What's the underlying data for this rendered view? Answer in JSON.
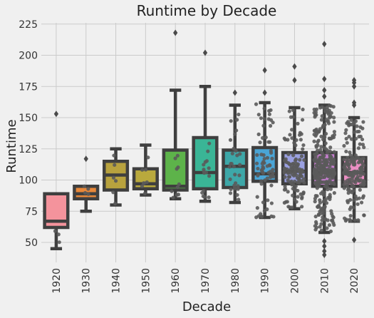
{
  "chart_data": {
    "type": "box",
    "title": "Runtime by Decade",
    "xlabel": "Decade",
    "ylabel": "Runtime",
    "categories": [
      "1920",
      "1930",
      "1940",
      "1950",
      "1960",
      "1970",
      "1980",
      "1990",
      "2000",
      "2010",
      "2020"
    ],
    "ylim": [
      34,
      226
    ],
    "yticks": [
      50,
      75,
      100,
      125,
      150,
      175,
      200,
      225
    ],
    "grid": true,
    "box_colors": [
      "#f4939c",
      "#e8883a",
      "#b8a23e",
      "#b9a93d",
      "#5db34a",
      "#3ab596",
      "#3da7a8",
      "#4aa5d6",
      "#9aa0e0",
      "#c77fd0",
      "#ea8fc4"
    ],
    "boxes": [
      {
        "whislo": 45,
        "q1": 62,
        "med": 67,
        "q3": 89,
        "whishi": 89,
        "fliers": [
          153
        ]
      },
      {
        "whislo": 75,
        "q1": 85,
        "med": 89,
        "q3": 95,
        "whishi": 95,
        "fliers": [
          117
        ]
      },
      {
        "whislo": 80,
        "q1": 92,
        "med": 104,
        "q3": 115,
        "whishi": 125,
        "fliers": []
      },
      {
        "whislo": 88,
        "q1": 93,
        "med": 97,
        "q3": 109,
        "whishi": 128,
        "fliers": []
      },
      {
        "whislo": 85,
        "q1": 92,
        "med": 95,
        "q3": 124,
        "whishi": 172,
        "fliers": [
          218
        ]
      },
      {
        "whislo": 83,
        "q1": 93,
        "med": 106,
        "q3": 134,
        "whishi": 175,
        "fliers": [
          202
        ]
      },
      {
        "whislo": 82,
        "q1": 94,
        "med": 111,
        "q3": 124,
        "whishi": 160,
        "fliers": [
          170
        ]
      },
      {
        "whislo": 70,
        "q1": 99,
        "med": 105,
        "q3": 126,
        "whishi": 162,
        "fliers": [
          170,
          188
        ]
      },
      {
        "whislo": 77,
        "q1": 97,
        "med": 107,
        "q3": 122,
        "whishi": 158,
        "fliers": [
          180,
          191
        ]
      },
      {
        "whislo": 58,
        "q1": 95,
        "med": 106,
        "q3": 122,
        "whishi": 160,
        "fliers": [
          40,
          43,
          47,
          51,
          167,
          172,
          181,
          209
        ]
      },
      {
        "whislo": 67,
        "q1": 95,
        "med": 106,
        "q3": 118,
        "whishi": 150,
        "fliers": [
          52,
          160,
          162,
          175,
          178,
          180
        ]
      }
    ],
    "point_counts": [
      3,
      4,
      6,
      8,
      10,
      16,
      30,
      70,
      120,
      320,
      170
    ]
  }
}
